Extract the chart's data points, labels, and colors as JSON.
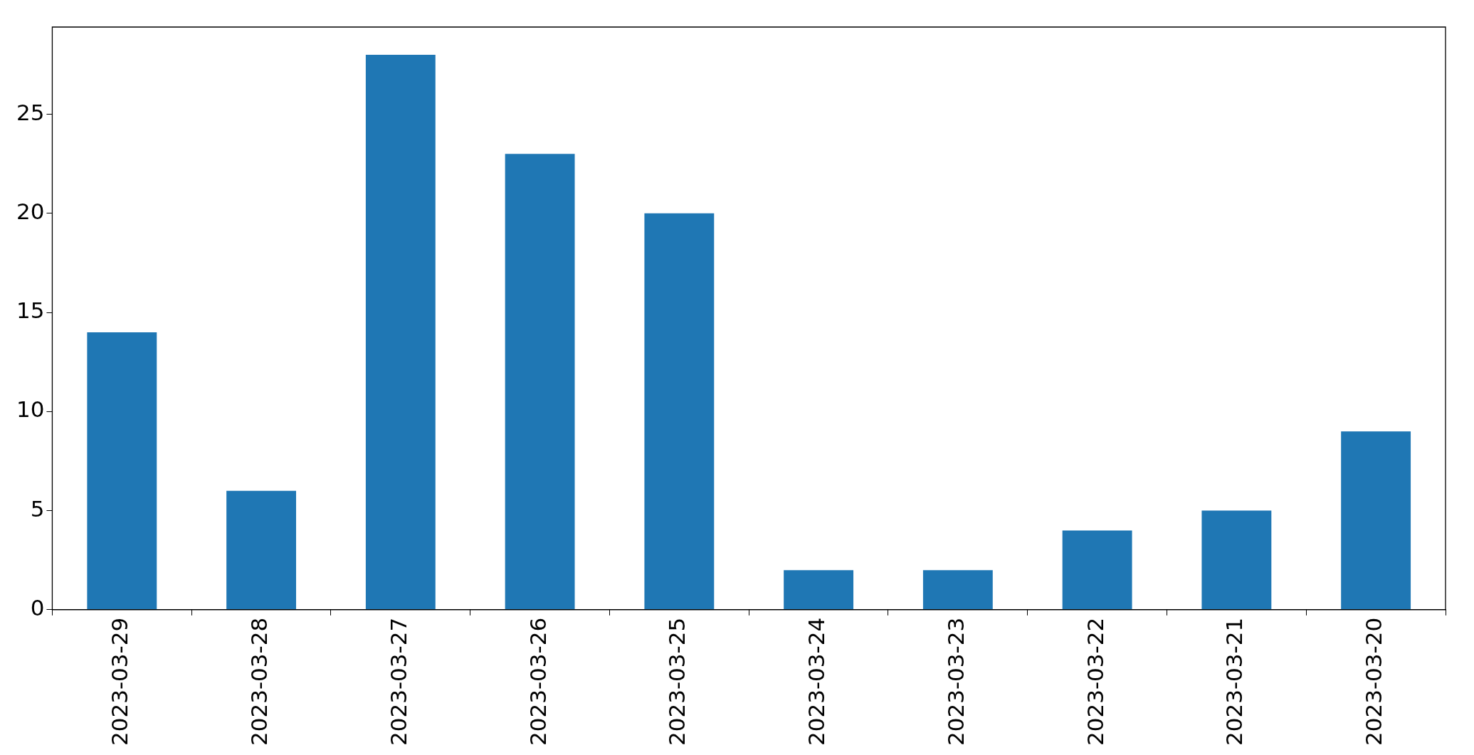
{
  "chart_data": {
    "type": "bar",
    "categories": [
      "2023-03-29",
      "2023-03-28",
      "2023-03-27",
      "2023-03-26",
      "2023-03-25",
      "2023-03-24",
      "2023-03-23",
      "2023-03-22",
      "2023-03-21",
      "2023-03-20"
    ],
    "values": [
      14,
      6,
      28,
      23,
      20,
      2,
      2,
      4,
      5,
      9
    ],
    "color": "#1f77b4",
    "ylim": [
      0,
      29.4
    ],
    "yticks": [
      0,
      5,
      10,
      15,
      20,
      25
    ]
  }
}
